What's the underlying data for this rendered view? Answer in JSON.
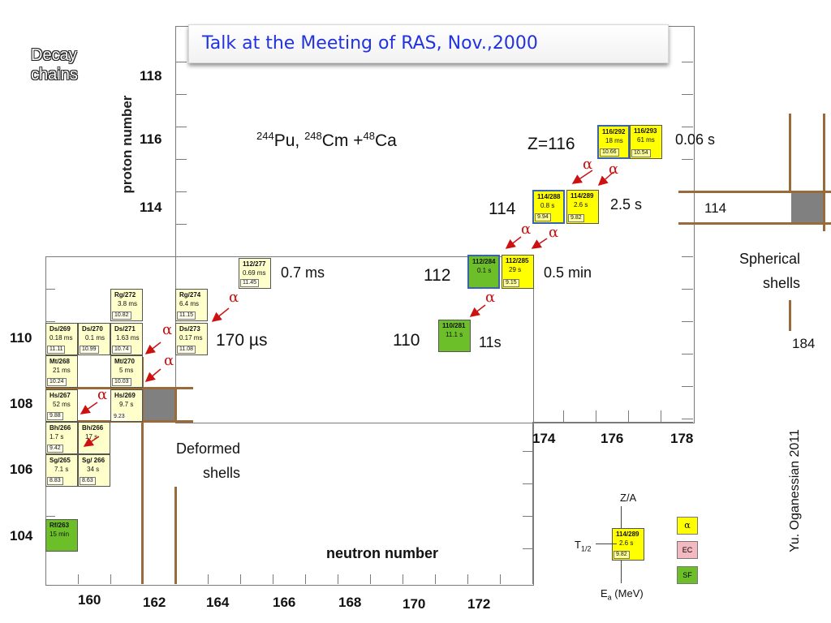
{
  "title": "Talk at the Meeting of RAS, Nov.,2000",
  "corner_label": [
    "Decay",
    "chains"
  ],
  "y_axis_label": "proton number",
  "x_axis_label": "neutron number",
  "y_ticks": [
    {
      "label": "118"
    },
    {
      "label": "116"
    },
    {
      "label": "114"
    },
    {
      "label": "110"
    },
    {
      "label": "108"
    },
    {
      "label": "106"
    },
    {
      "label": "104"
    }
  ],
  "x_ticks_lower": [
    "160",
    "162",
    "164",
    "166",
    "168",
    "170",
    "172"
  ],
  "x_ticks_upper": [
    "174",
    "176",
    "178"
  ],
  "reaction": {
    "a": "244",
    "b": "Pu, ",
    "c": "248",
    "d": "Cm +",
    "e": "48",
    "f": "Ca"
  },
  "nuclides": [
    {
      "name": "Rf/263",
      "half_life": "15 min",
      "energy": "",
      "color": "green"
    },
    {
      "name": "Sg/265",
      "half_life": "7.1 s",
      "energy": "8.83",
      "color": "pale"
    },
    {
      "name": "Sg/ 266",
      "half_life": "34 s",
      "energy": "8.63",
      "color": "pale"
    },
    {
      "name": "Bh/266",
      "half_life": "1.7 s",
      "energy": "9.42",
      "color": "pale"
    },
    {
      "name": "Bh/266",
      "half_life": "17 s",
      "energy": "",
      "color": "pale"
    },
    {
      "name": "Hs/267",
      "half_life": "52 ms",
      "energy": "9.88",
      "color": "pale"
    },
    {
      "name": "Hs/269",
      "half_life": "9.7 s",
      "energy": "9.23",
      "color": "pale"
    },
    {
      "name": "Mt/268",
      "half_life": "21 ms",
      "energy": "10.24",
      "color": "pale"
    },
    {
      "name": "Mt/270",
      "half_life": "5 ms",
      "energy": "10.03",
      "color": "pale"
    },
    {
      "name": "Ds/269",
      "half_life": "0.18 ms",
      "energy": "11.11",
      "color": "pale"
    },
    {
      "name": "Ds/270",
      "half_life": "0.1 ms",
      "energy": "10.99",
      "color": "pale"
    },
    {
      "name": "Ds/271",
      "half_life": "1.63 ms",
      "energy": "10.74",
      "color": "pale"
    },
    {
      "name": "Ds/273",
      "half_life": "0.17 ms",
      "energy": "11.08",
      "color": "pale"
    },
    {
      "name": "Rg/272",
      "half_life": "3.8 ms",
      "energy": "10.82",
      "color": "pale"
    },
    {
      "name": "Rg/274",
      "half_life": "6.4 ms",
      "energy": "11.15",
      "color": "pale"
    },
    {
      "name": "112/277",
      "half_life": "0.69 ms",
      "energy": "11.45",
      "color": "pale"
    },
    {
      "name": "110/281",
      "half_life": "11.1 s",
      "energy": "",
      "color": "green"
    },
    {
      "name": "112/284",
      "half_life": "0.1 s",
      "energy": "",
      "color": "green"
    },
    {
      "name": "112/285",
      "half_life": "29 s",
      "energy": "9.15",
      "color": "yellow"
    },
    {
      "name": "114/288",
      "half_life": "0.8 s",
      "energy": "9.94",
      "color": "yellow"
    },
    {
      "name": "114/289",
      "half_life": "2.6 s",
      "energy": "9.82",
      "color": "yellow"
    },
    {
      "name": "116/292",
      "half_life": "18 ms",
      "energy": "10.66",
      "color": "yellow"
    },
    {
      "name": "116/293",
      "half_life": "61 ms",
      "energy": "10.54",
      "color": "yellow"
    }
  ],
  "annotations": {
    "t_0_7ms": "0.7 ms",
    "t_170us": "170 µs",
    "t_0_06s": "0.06 s",
    "t_2_5s": "2.5 s",
    "t_0_5min": "0.5 min",
    "t_11s": "11s",
    "z116": "Z=116",
    "z114": "114",
    "z112": "112",
    "z110": "110",
    "deformed_1": "Deformed",
    "deformed_2": "shells",
    "spherical_1": "Spherical",
    "spherical_2": "shells",
    "spherical_z": "114",
    "spherical_n": "184",
    "alpha": "α"
  },
  "credit": "Yu. Oganessian  2011",
  "legend": {
    "za": "Z/A",
    "sample_name": "114/289",
    "sample_half_life": "2.6 s",
    "sample_energy": "9.82",
    "t_half": "T",
    "t_half_sub": "1/2",
    "ea": "E",
    "ea_sub": "a",
    "ea_unit": " (MeV)",
    "alpha": "α",
    "ec": "EC",
    "sf": "SF",
    "colors": {
      "alpha": "#ffff00",
      "ec": "#f4b8c0",
      "sf": "#6dbf2a"
    }
  }
}
